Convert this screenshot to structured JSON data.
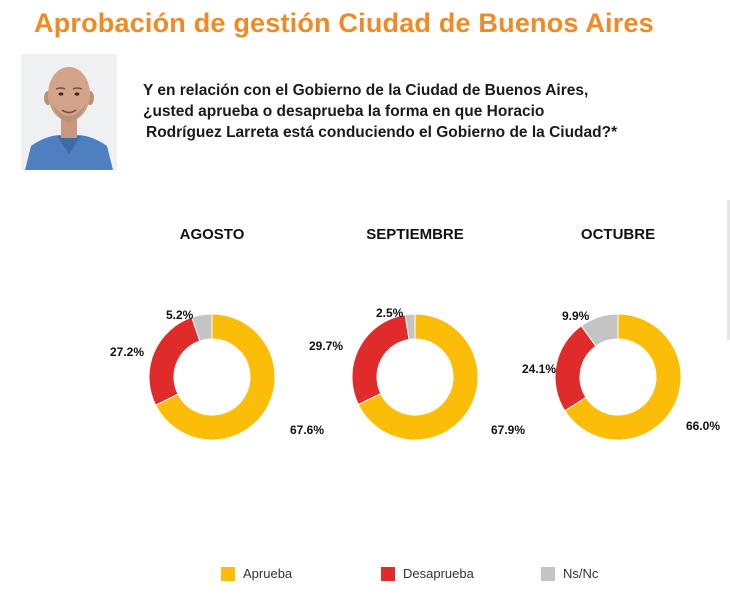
{
  "title": "Aprobación de gestión Ciudad de Buenos Aires",
  "question": {
    "line1": "Y en relación con el Gobierno de la Ciudad de Buenos Aires,",
    "line2": "¿usted aprueba o desaprueba la forma en que Horacio",
    "line3": "Rodríguez Larreta está conduciendo el Gobierno de la Ciudad?*"
  },
  "colors": {
    "title": "#f08a24",
    "aprueba": "#fbbd08",
    "desaprueba": "#e02b2b",
    "nsnc": "#c4c4c4"
  },
  "chart_data": [
    {
      "type": "pie",
      "variant": "donut",
      "title": "AGOSTO",
      "labels": [
        "Aprueba",
        "Desaprueba",
        "Ns/Nc"
      ],
      "values": [
        67.6,
        27.2,
        5.2
      ],
      "value_labels": [
        "67.6%",
        "27.2%",
        "5.2%"
      ]
    },
    {
      "type": "pie",
      "variant": "donut",
      "title": "SEPTIEMBRE",
      "labels": [
        "Aprueba",
        "Desaprueba",
        "Ns/Nc"
      ],
      "values": [
        67.9,
        29.7,
        2.5
      ],
      "value_labels": [
        "67.9%",
        "29.7%",
        "2.5%"
      ]
    },
    {
      "type": "pie",
      "variant": "donut",
      "title": "OCTUBRE",
      "labels": [
        "Aprueba",
        "Desaprueba",
        "Ns/Nc"
      ],
      "values": [
        66.0,
        24.1,
        9.9
      ],
      "value_labels": [
        "66.0%",
        "24.1%",
        "9.9%"
      ]
    }
  ],
  "legend": {
    "placement": "bottom",
    "items": [
      {
        "label": "Aprueba",
        "color": "#fbbd08"
      },
      {
        "label": "Desaprueba",
        "color": "#e02b2b"
      },
      {
        "label": "Ns/Nc",
        "color": "#c4c4c4"
      }
    ]
  }
}
